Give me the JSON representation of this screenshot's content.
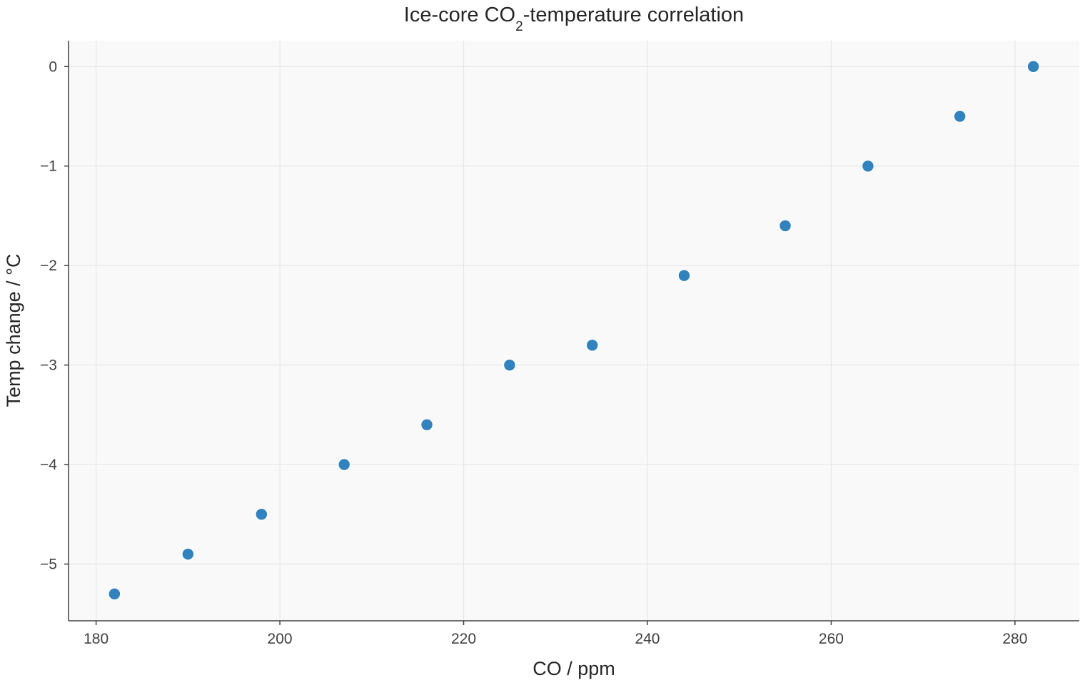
{
  "chart_data": {
    "type": "scatter",
    "title": {
      "prefix": "Ice-core CO",
      "subscript": "2",
      "suffix": "-temperature correlation"
    },
    "xlabel": "CO  / ppm",
    "ylabel": "Temp change / °C",
    "xlim": [
      177,
      287
    ],
    "ylim": [
      -5.57,
      0.26
    ],
    "xticks": [
      180,
      200,
      220,
      240,
      260,
      280
    ],
    "yticks": [
      0,
      -1,
      -2,
      -3,
      -4,
      -5
    ],
    "xtick_labels": [
      "180",
      "200",
      "220",
      "240",
      "260",
      "280"
    ],
    "ytick_labels": [
      "0",
      "−1",
      "−2",
      "−3",
      "−4",
      "−5"
    ],
    "grid": true,
    "series": [
      {
        "color": "#3182bd",
        "points": [
          {
            "x": 182,
            "y": -5.3
          },
          {
            "x": 190,
            "y": -4.9
          },
          {
            "x": 198,
            "y": -4.5
          },
          {
            "x": 207,
            "y": -4.0
          },
          {
            "x": 216,
            "y": -3.6
          },
          {
            "x": 225,
            "y": -3.0
          },
          {
            "x": 234,
            "y": -2.8
          },
          {
            "x": 244,
            "y": -2.1
          },
          {
            "x": 255,
            "y": -1.6
          },
          {
            "x": 264,
            "y": -1.0
          },
          {
            "x": 274,
            "y": -0.5
          },
          {
            "x": 282,
            "y": 0.0
          }
        ]
      }
    ],
    "colors": {
      "plot_background": "#f9f9f9"
    }
  }
}
